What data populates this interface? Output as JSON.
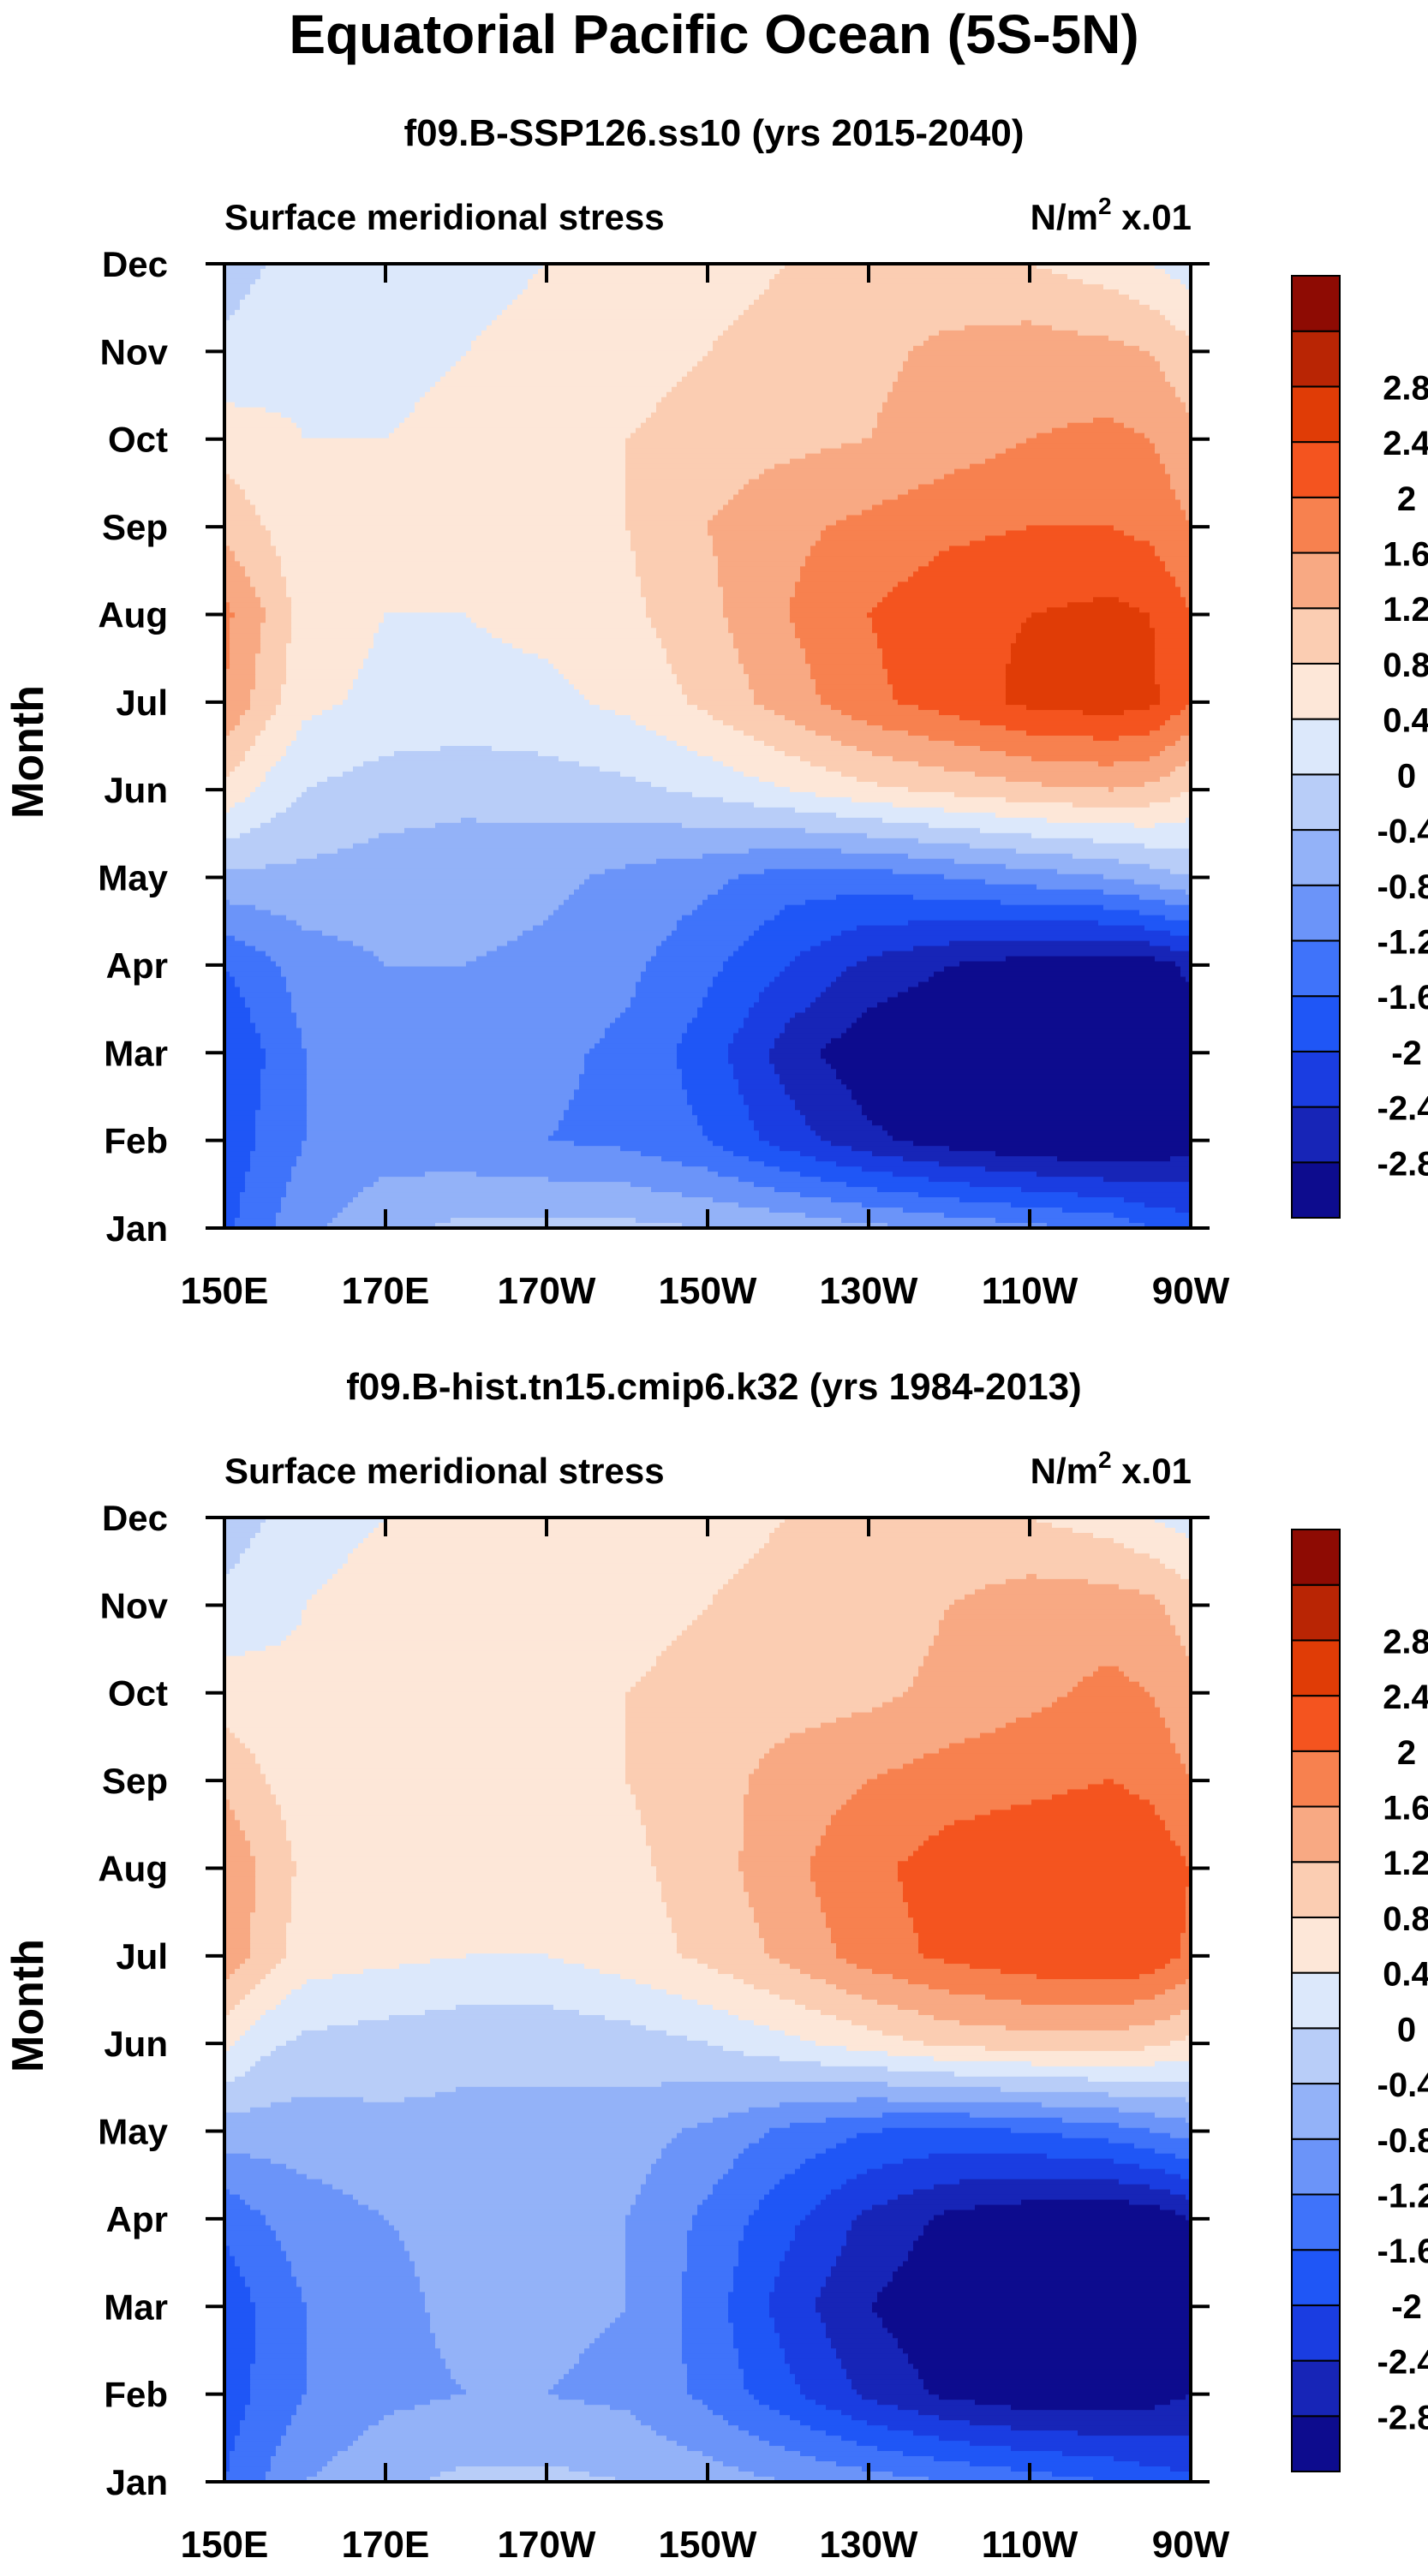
{
  "title": "Equatorial Pacific Ocean (5S-5N)",
  "colorbar": {
    "colors": [
      "#0d0c8e",
      "#1725b7",
      "#1a3de1",
      "#1f56f6",
      "#3f73fa",
      "#6b94f9",
      "#93b2f8",
      "#b8cdf8",
      "#dce8fb",
      "#fde7d8",
      "#fbcdb2",
      "#f8a983",
      "#f7814f",
      "#f4541f",
      "#e03c06",
      "#b92504",
      "#8e0b03"
    ],
    "labels": [
      "-2.8",
      "-2.4",
      "-2",
      "-1.6",
      "-1.2",
      "-0.8",
      "-0.4",
      "0",
      "0.4",
      "0.8",
      "1.2",
      "1.6",
      "2",
      "2.4",
      "2.8"
    ]
  },
  "chart_data": [
    {
      "type": "heatmap",
      "title": "f09.B-SSP126.ss10 (yrs 2015-2040)",
      "left_label": "Surface meridional stress",
      "units": "N/m",
      "units_sup": "2",
      "units_scale": " x.01",
      "ylabel": "Month",
      "xticks": [
        "150E",
        "170E",
        "170W",
        "150W",
        "130W",
        "110W",
        "90W"
      ],
      "yticks": [
        "Jan",
        "Feb",
        "Mar",
        "Apr",
        "May",
        "Jun",
        "Jul",
        "Aug",
        "Sep",
        "Oct",
        "Nov",
        "Dec"
      ],
      "xlim": [
        150,
        270
      ],
      "ylim": [
        0,
        11
      ],
      "levels": [
        -2.8,
        -2.4,
        -2.0,
        -1.6,
        -1.2,
        -0.8,
        -0.4,
        0,
        0.4,
        0.8,
        1.2,
        1.6,
        2.0,
        2.4,
        2.8
      ],
      "lon": [
        150,
        155,
        160,
        170,
        180,
        190,
        200,
        210,
        220,
        230,
        240,
        250,
        260,
        265,
        270
      ],
      "values": [
        [
          -1.7,
          -1.3,
          -0.9,
          -0.5,
          -0.3,
          -0.3,
          -0.3,
          -0.4,
          -0.5,
          -0.7,
          -0.9,
          -1.1,
          -1.3,
          -1.6,
          -1.8
        ],
        [
          -1.9,
          -1.5,
          -1.2,
          -1.0,
          -1.1,
          -1.2,
          -1.3,
          -1.6,
          -2.2,
          -2.7,
          -3.0,
          -3.2,
          -3.3,
          -3.2,
          -3.0
        ],
        [
          -2.0,
          -1.6,
          -1.2,
          -1.0,
          -1.0,
          -1.1,
          -1.3,
          -1.8,
          -2.6,
          -3.1,
          -3.3,
          -3.4,
          -3.4,
          -3.3,
          -3.1
        ],
        [
          -1.6,
          -1.3,
          -1.0,
          -0.8,
          -0.8,
          -0.9,
          -1.1,
          -1.5,
          -2.0,
          -2.5,
          -2.8,
          -3.0,
          -3.1,
          -3.0,
          -2.7
        ],
        [
          -0.5,
          -0.5,
          -0.5,
          -0.6,
          -0.6,
          -0.7,
          -0.9,
          -1.1,
          -1.4,
          -1.4,
          -1.2,
          -1.0,
          -0.8,
          -0.6,
          -0.4
        ],
        [
          0.7,
          0.3,
          0.0,
          -0.2,
          -0.3,
          -0.2,
          -0.1,
          0.1,
          0.4,
          0.7,
          0.9,
          1.1,
          1.2,
          1.1,
          0.8
        ],
        [
          1.6,
          1.0,
          0.5,
          0.3,
          0.3,
          0.3,
          0.5,
          0.9,
          1.4,
          1.9,
          2.2,
          2.5,
          2.6,
          2.5,
          2.0
        ],
        [
          1.7,
          1.2,
          0.6,
          0.4,
          0.4,
          0.5,
          0.7,
          1.1,
          1.6,
          2.0,
          2.3,
          2.4,
          2.5,
          2.4,
          2.0
        ],
        [
          1.1,
          0.8,
          0.5,
          0.4,
          0.5,
          0.6,
          0.8,
          1.2,
          1.5,
          1.7,
          1.9,
          2.0,
          2.0,
          1.9,
          1.6
        ],
        [
          0.6,
          0.5,
          0.4,
          0.4,
          0.5,
          0.6,
          0.8,
          1.0,
          1.1,
          1.2,
          1.4,
          1.6,
          1.7,
          1.6,
          1.3
        ],
        [
          0.1,
          0.2,
          0.3,
          0.3,
          0.4,
          0.5,
          0.6,
          0.8,
          0.9,
          1.1,
          1.3,
          1.4,
          1.3,
          1.2,
          0.9
        ],
        [
          -0.2,
          0.0,
          0.2,
          0.3,
          0.3,
          0.4,
          0.5,
          0.7,
          0.8,
          0.9,
          0.9,
          0.8,
          0.6,
          0.4,
          0.2
        ]
      ]
    },
    {
      "type": "heatmap",
      "title": "f09.B-hist.tn15.cmip6.k32 (yrs 1984-2013)",
      "left_label": "Surface meridional stress",
      "units": "N/m",
      "units_sup": "2",
      "units_scale": " x.01",
      "ylabel": "Month",
      "xticks": [
        "150E",
        "170E",
        "170W",
        "150W",
        "130W",
        "110W",
        "90W"
      ],
      "yticks": [
        "Jan",
        "Feb",
        "Mar",
        "Apr",
        "May",
        "Jun",
        "Jul",
        "Aug",
        "Sep",
        "Oct",
        "Nov",
        "Dec"
      ],
      "xlim": [
        150,
        270
      ],
      "ylim": [
        0,
        11
      ],
      "levels": [
        -2.8,
        -2.4,
        -2.0,
        -1.6,
        -1.2,
        -0.8,
        -0.4,
        0,
        0.4,
        0.8,
        1.2,
        1.6,
        2.0,
        2.4,
        2.8
      ],
      "lon": [
        150,
        155,
        160,
        170,
        180,
        190,
        200,
        210,
        220,
        230,
        240,
        250,
        260,
        265,
        270
      ],
      "values": [
        [
          -1.6,
          -1.2,
          -0.8,
          -0.5,
          -0.3,
          -0.3,
          -0.4,
          -0.6,
          -0.8,
          -1.0,
          -1.2,
          -1.4,
          -1.6,
          -1.8,
          -1.9
        ],
        [
          -1.8,
          -1.5,
          -1.2,
          -0.9,
          -0.8,
          -0.8,
          -0.9,
          -1.3,
          -1.9,
          -2.5,
          -2.9,
          -3.1,
          -3.1,
          -3.0,
          -2.8
        ],
        [
          -1.9,
          -1.5,
          -1.2,
          -0.9,
          -0.7,
          -0.7,
          -0.8,
          -1.4,
          -2.2,
          -2.8,
          -3.1,
          -3.2,
          -3.2,
          -3.1,
          -2.9
        ],
        [
          -1.5,
          -1.2,
          -1.0,
          -0.8,
          -0.7,
          -0.7,
          -0.8,
          -1.3,
          -1.9,
          -2.5,
          -2.9,
          -3.1,
          -3.2,
          -3.1,
          -2.8
        ],
        [
          -0.6,
          -0.6,
          -0.6,
          -0.5,
          -0.5,
          -0.5,
          -0.6,
          -0.9,
          -1.3,
          -1.6,
          -1.7,
          -1.6,
          -1.4,
          -1.2,
          -1.0
        ],
        [
          0.5,
          0.1,
          -0.1,
          -0.2,
          -0.3,
          -0.3,
          -0.2,
          0.0,
          0.3,
          0.6,
          0.9,
          1.0,
          1.0,
          0.9,
          0.7
        ],
        [
          1.5,
          1.0,
          0.6,
          0.5,
          0.4,
          0.4,
          0.6,
          0.9,
          1.3,
          1.8,
          2.1,
          2.3,
          2.4,
          2.3,
          1.9
        ],
        [
          1.6,
          1.1,
          0.7,
          0.5,
          0.5,
          0.6,
          0.7,
          1.0,
          1.5,
          1.9,
          2.2,
          2.3,
          2.4,
          2.3,
          2.0
        ],
        [
          1.1,
          0.8,
          0.6,
          0.5,
          0.6,
          0.7,
          0.8,
          1.0,
          1.4,
          1.6,
          1.8,
          1.9,
          2.0,
          1.9,
          1.6
        ],
        [
          0.6,
          0.6,
          0.5,
          0.5,
          0.6,
          0.7,
          0.8,
          0.9,
          1.0,
          1.1,
          1.3,
          1.5,
          1.7,
          1.6,
          1.3
        ],
        [
          0.1,
          0.2,
          0.4,
          0.5,
          0.5,
          0.6,
          0.7,
          0.8,
          0.9,
          1.0,
          1.2,
          1.4,
          1.4,
          1.3,
          1.0
        ],
        [
          -0.2,
          0.0,
          0.3,
          0.4,
          0.5,
          0.5,
          0.6,
          0.7,
          0.8,
          0.9,
          0.9,
          0.8,
          0.6,
          0.4,
          0.2
        ]
      ]
    }
  ]
}
